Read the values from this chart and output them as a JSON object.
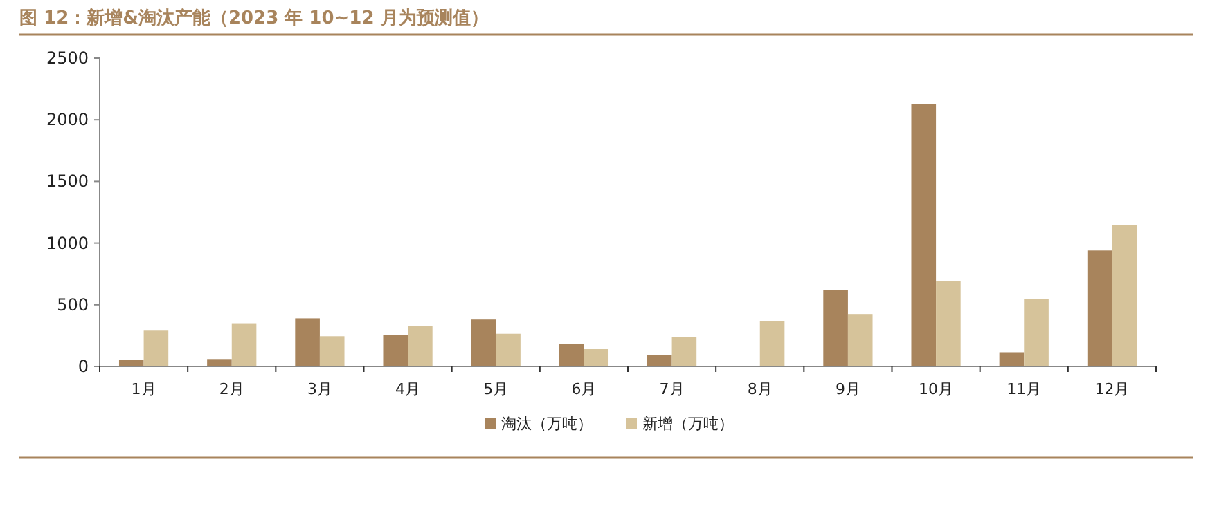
{
  "chart_data": {
    "type": "bar",
    "title": "图 12：新增&淘汰产能（2023 年 10~12 月为预测值）",
    "categories": [
      "1月",
      "2月",
      "3月",
      "4月",
      "5月",
      "6月",
      "7月",
      "8月",
      "9月",
      "10月",
      "11月",
      "12月"
    ],
    "series": [
      {
        "name": "淘汰（万吨）",
        "color": "#a8845c",
        "values": [
          55,
          60,
          390,
          255,
          380,
          185,
          95,
          0,
          620,
          2130,
          115,
          940
        ]
      },
      {
        "name": "新增（万吨）",
        "color": "#d6c39a",
        "values": [
          290,
          350,
          245,
          325,
          265,
          140,
          240,
          365,
          425,
          690,
          545,
          1145
        ]
      }
    ],
    "ylim": [
      0,
      2500
    ],
    "yticks": [
      0,
      500,
      1000,
      1500,
      2000,
      2500
    ],
    "grid": false,
    "legend": "bottom"
  }
}
